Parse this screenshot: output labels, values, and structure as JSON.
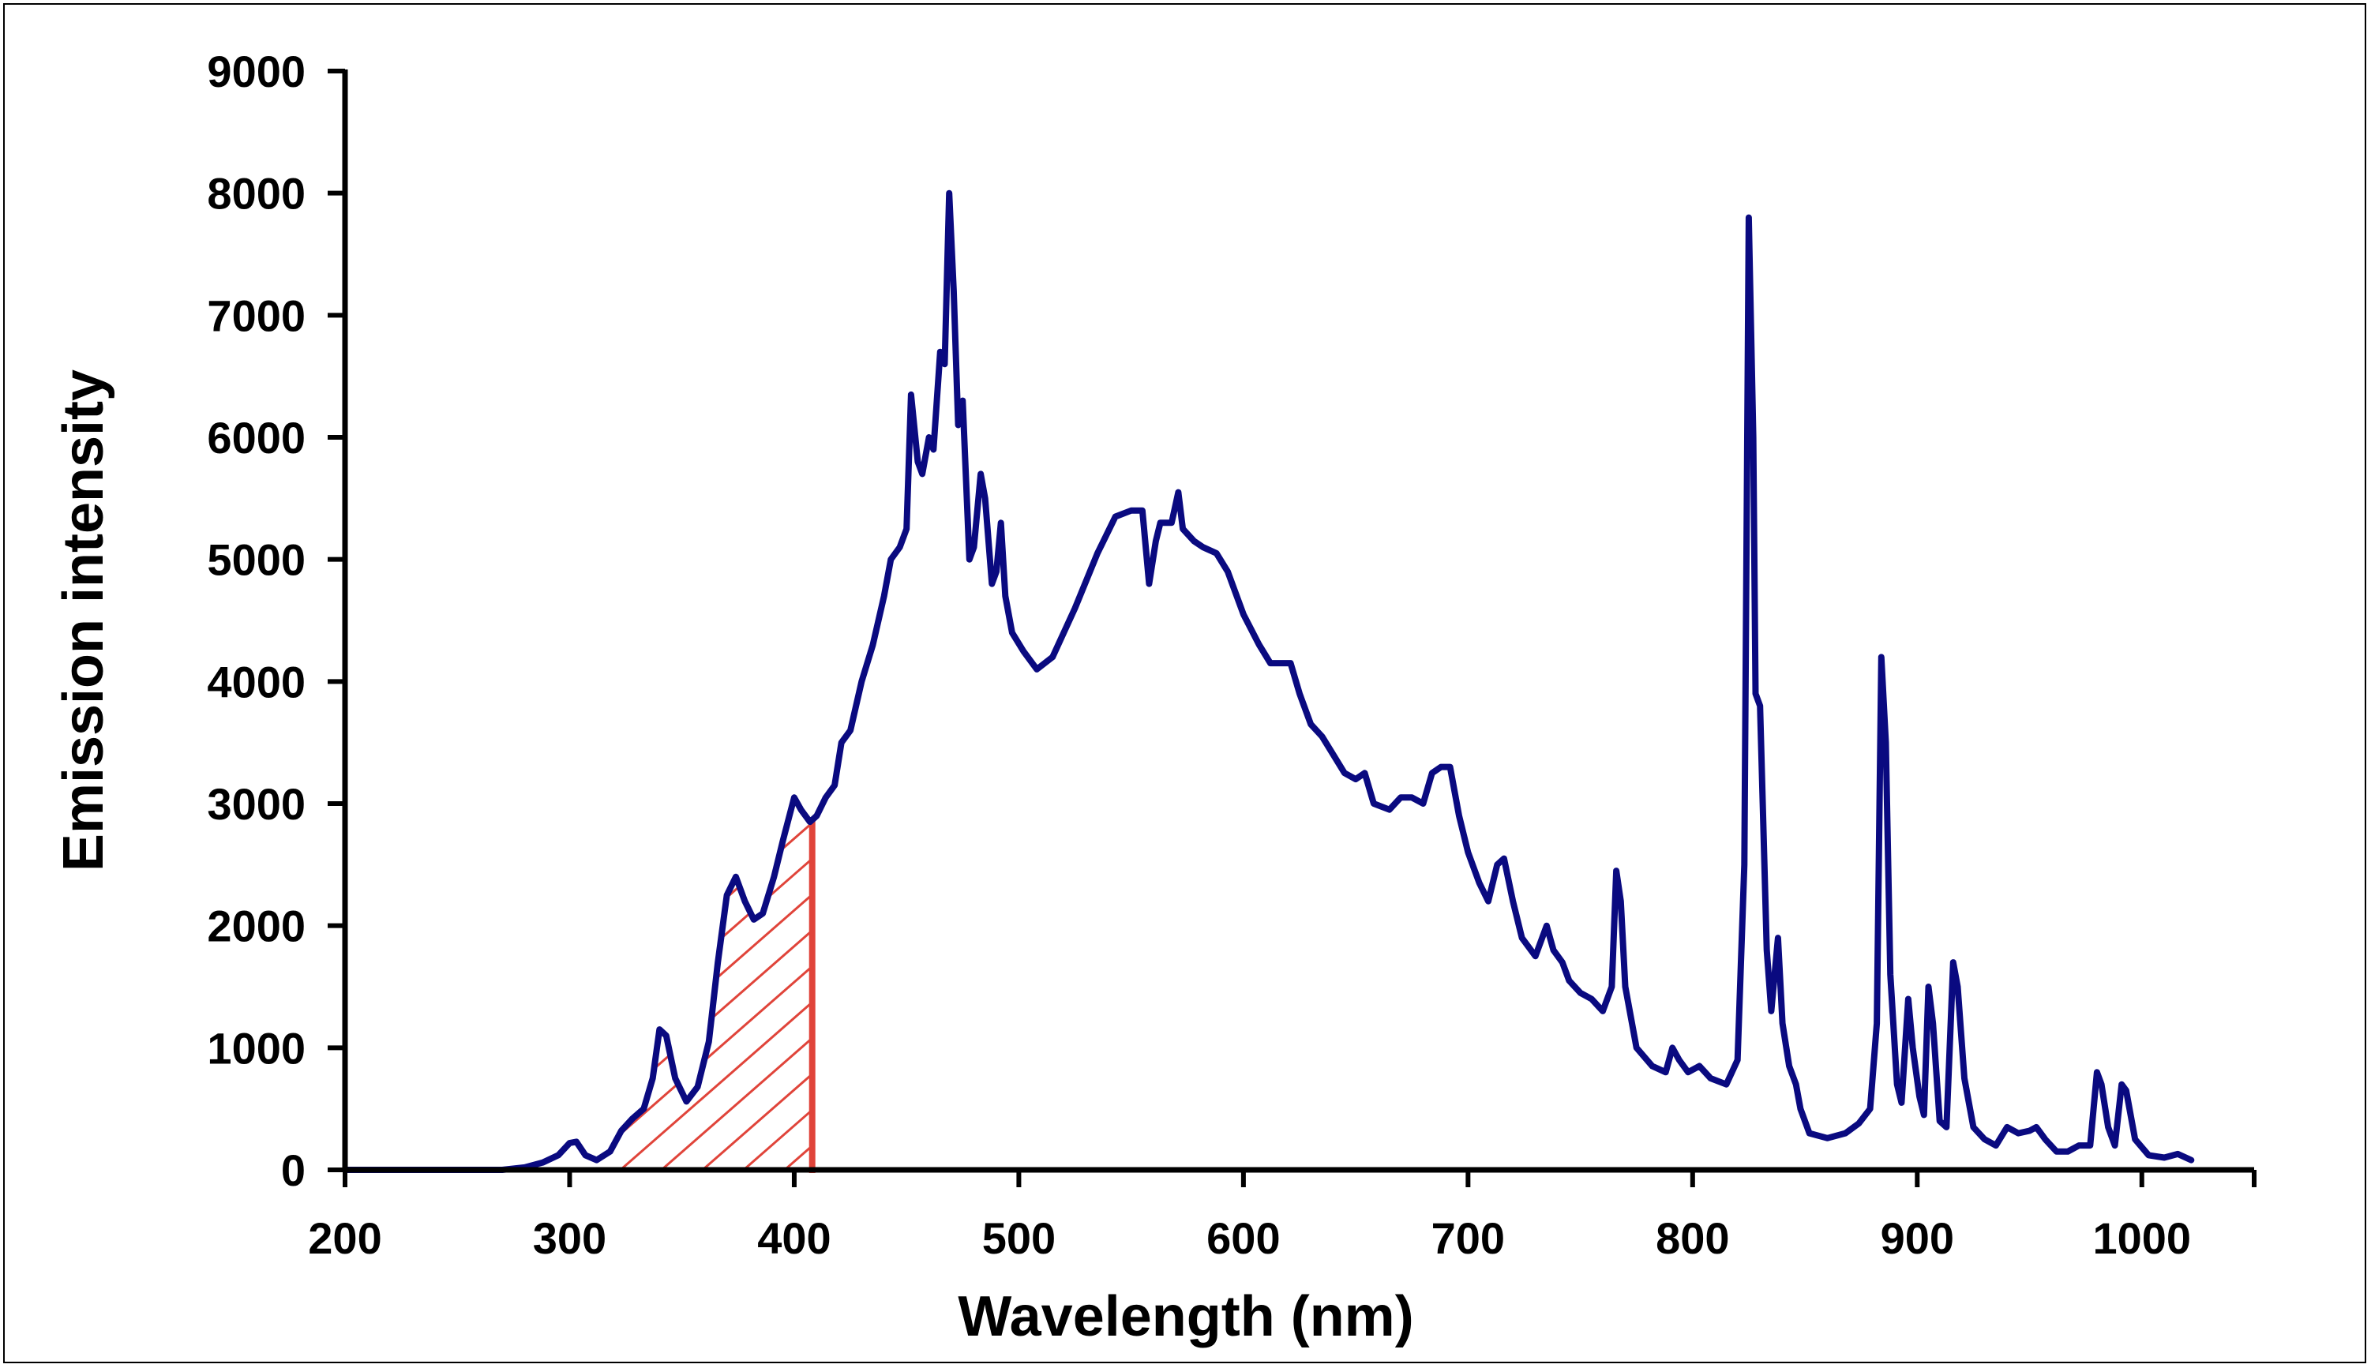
{
  "chart_data": {
    "type": "line",
    "title": "",
    "xlabel": "Wavelength (nm)",
    "ylabel": "Emission intensity",
    "xlim": [
      200,
      1050
    ],
    "ylim": [
      0,
      9000
    ],
    "x_ticks": [
      200,
      300,
      400,
      500,
      600,
      700,
      800,
      900,
      1000
    ],
    "y_ticks": [
      0,
      1000,
      2000,
      3000,
      4000,
      5000,
      6000,
      7000,
      8000,
      9000
    ],
    "line_color": "#0a0a80",
    "highlight": {
      "description": "hatched region under curve",
      "x_start": 315,
      "x_end": 408,
      "color": "#e0443a"
    },
    "series": [
      {
        "name": "Emission",
        "points": [
          [
            200,
            0
          ],
          [
            270,
            0
          ],
          [
            280,
            20
          ],
          [
            288,
            60
          ],
          [
            295,
            120
          ],
          [
            300,
            220
          ],
          [
            303,
            230
          ],
          [
            307,
            120
          ],
          [
            312,
            80
          ],
          [
            318,
            150
          ],
          [
            323,
            320
          ],
          [
            328,
            420
          ],
          [
            333,
            500
          ],
          [
            337,
            750
          ],
          [
            340,
            1150
          ],
          [
            343,
            1100
          ],
          [
            347,
            750
          ],
          [
            352,
            560
          ],
          [
            357,
            680
          ],
          [
            362,
            1050
          ],
          [
            366,
            1700
          ],
          [
            370,
            2250
          ],
          [
            374,
            2400
          ],
          [
            378,
            2200
          ],
          [
            382,
            2050
          ],
          [
            386,
            2100
          ],
          [
            391,
            2400
          ],
          [
            395,
            2700
          ],
          [
            400,
            3050
          ],
          [
            403,
            2950
          ],
          [
            407,
            2850
          ],
          [
            410,
            2900
          ],
          [
            414,
            3050
          ],
          [
            418,
            3150
          ],
          [
            421,
            3500
          ],
          [
            425,
            3600
          ],
          [
            430,
            4000
          ],
          [
            435,
            4300
          ],
          [
            440,
            4700
          ],
          [
            443,
            5000
          ],
          [
            447,
            5100
          ],
          [
            450,
            5250
          ],
          [
            452,
            6350
          ],
          [
            455,
            5800
          ],
          [
            457,
            5700
          ],
          [
            460,
            6000
          ],
          [
            462,
            5900
          ],
          [
            465,
            6700
          ],
          [
            467,
            6600
          ],
          [
            469,
            8000
          ],
          [
            471,
            7200
          ],
          [
            473,
            6100
          ],
          [
            475,
            6300
          ],
          [
            478,
            5000
          ],
          [
            480,
            5100
          ],
          [
            483,
            5700
          ],
          [
            485,
            5500
          ],
          [
            488,
            4800
          ],
          [
            490,
            4900
          ],
          [
            492,
            5300
          ],
          [
            494,
            4700
          ],
          [
            497,
            4400
          ],
          [
            502,
            4250
          ],
          [
            508,
            4100
          ],
          [
            515,
            4200
          ],
          [
            525,
            4600
          ],
          [
            535,
            5050
          ],
          [
            543,
            5350
          ],
          [
            550,
            5400
          ],
          [
            555,
            5400
          ],
          [
            558,
            4800
          ],
          [
            561,
            5150
          ],
          [
            563,
            5300
          ],
          [
            566,
            5300
          ],
          [
            568,
            5300
          ],
          [
            571,
            5550
          ],
          [
            573,
            5250
          ],
          [
            578,
            5150
          ],
          [
            582,
            5100
          ],
          [
            588,
            5050
          ],
          [
            593,
            4900
          ],
          [
            600,
            4550
          ],
          [
            607,
            4300
          ],
          [
            612,
            4150
          ],
          [
            618,
            4150
          ],
          [
            621,
            4150
          ],
          [
            625,
            3900
          ],
          [
            630,
            3650
          ],
          [
            635,
            3550
          ],
          [
            640,
            3400
          ],
          [
            645,
            3250
          ],
          [
            650,
            3200
          ],
          [
            654,
            3250
          ],
          [
            658,
            3000
          ],
          [
            665,
            2950
          ],
          [
            670,
            3050
          ],
          [
            675,
            3050
          ],
          [
            680,
            3000
          ],
          [
            684,
            3250
          ],
          [
            688,
            3300
          ],
          [
            692,
            3300
          ],
          [
            696,
            2900
          ],
          [
            700,
            2600
          ],
          [
            705,
            2350
          ],
          [
            709,
            2200
          ],
          [
            713,
            2500
          ],
          [
            716,
            2550
          ],
          [
            720,
            2200
          ],
          [
            724,
            1900
          ],
          [
            730,
            1750
          ],
          [
            735,
            2000
          ],
          [
            738,
            1800
          ],
          [
            742,
            1700
          ],
          [
            745,
            1550
          ],
          [
            750,
            1450
          ],
          [
            755,
            1400
          ],
          [
            760,
            1300
          ],
          [
            764,
            1500
          ],
          [
            766,
            2450
          ],
          [
            768,
            2200
          ],
          [
            770,
            1500
          ],
          [
            775,
            1000
          ],
          [
            782,
            850
          ],
          [
            788,
            800
          ],
          [
            791,
            1000
          ],
          [
            794,
            900
          ],
          [
            798,
            800
          ],
          [
            803,
            850
          ],
          [
            808,
            750
          ],
          [
            815,
            700
          ],
          [
            820,
            900
          ],
          [
            823,
            2500
          ],
          [
            825,
            7800
          ],
          [
            827,
            6000
          ],
          [
            828,
            3900
          ],
          [
            830,
            3800
          ],
          [
            833,
            1800
          ],
          [
            835,
            1300
          ],
          [
            838,
            1900
          ],
          [
            840,
            1200
          ],
          [
            843,
            850
          ],
          [
            846,
            700
          ],
          [
            848,
            500
          ],
          [
            852,
            300
          ],
          [
            860,
            260
          ],
          [
            868,
            300
          ],
          [
            874,
            380
          ],
          [
            879,
            500
          ],
          [
            882,
            1200
          ],
          [
            884,
            4200
          ],
          [
            886,
            3500
          ],
          [
            888,
            1600
          ],
          [
            891,
            700
          ],
          [
            893,
            550
          ],
          [
            896,
            1400
          ],
          [
            898,
            1000
          ],
          [
            901,
            600
          ],
          [
            903,
            450
          ],
          [
            905,
            1500
          ],
          [
            907,
            1200
          ],
          [
            910,
            400
          ],
          [
            913,
            350
          ],
          [
            916,
            1700
          ],
          [
            918,
            1500
          ],
          [
            921,
            750
          ],
          [
            925,
            350
          ],
          [
            930,
            250
          ],
          [
            935,
            200
          ],
          [
            940,
            350
          ],
          [
            945,
            300
          ],
          [
            950,
            320
          ],
          [
            953,
            350
          ],
          [
            957,
            250
          ],
          [
            962,
            150
          ],
          [
            967,
            150
          ],
          [
            972,
            200
          ],
          [
            977,
            200
          ],
          [
            980,
            800
          ],
          [
            982,
            700
          ],
          [
            985,
            350
          ],
          [
            988,
            200
          ],
          [
            991,
            700
          ],
          [
            993,
            650
          ],
          [
            997,
            250
          ],
          [
            1003,
            120
          ],
          [
            1010,
            100
          ],
          [
            1016,
            130
          ],
          [
            1022,
            80
          ]
        ]
      }
    ]
  }
}
